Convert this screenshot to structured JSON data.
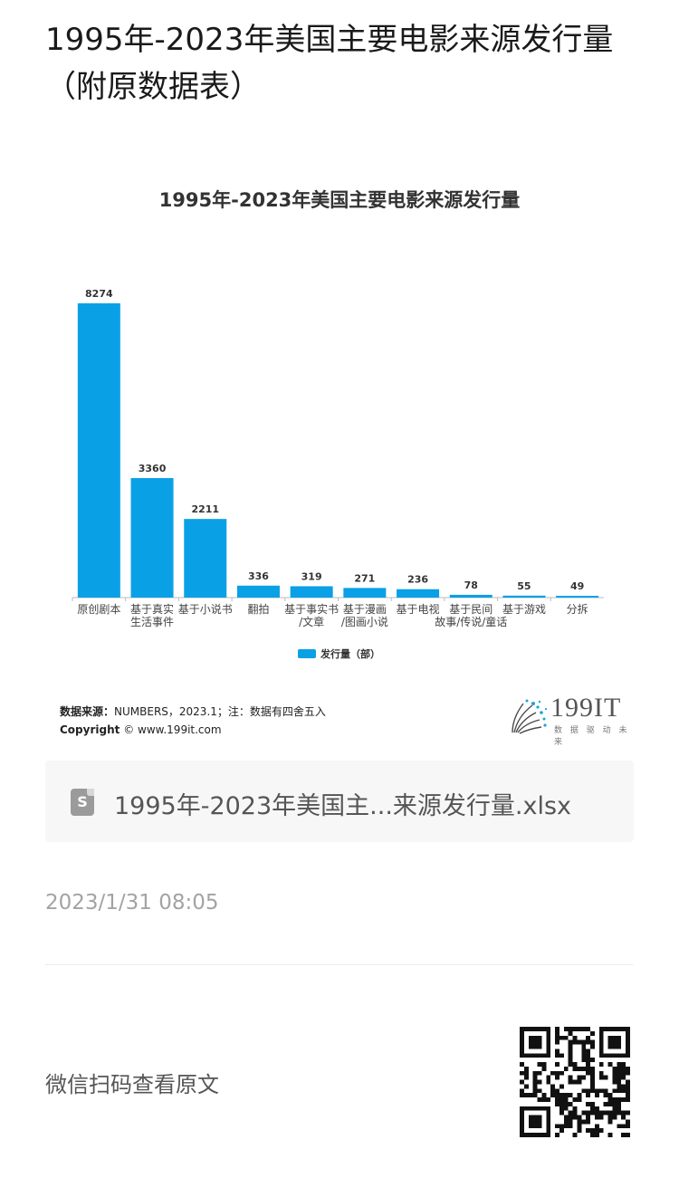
{
  "article": {
    "title": "1995年-2023年美国主要电影来源发行量（附原数据表）"
  },
  "chart_data": {
    "type": "bar",
    "title": "1995年-2023年美国主要电影来源发行量",
    "categories": [
      [
        "原创剧本"
      ],
      [
        "基于真实",
        "生活事件"
      ],
      [
        "基于小说书"
      ],
      [
        "翻拍"
      ],
      [
        "基于事实书",
        "/文章"
      ],
      [
        "基于漫画",
        "/图画小说"
      ],
      [
        "基于电视"
      ],
      [
        "基于民间",
        "故事/传说/童话"
      ],
      [
        "基于游戏"
      ],
      [
        "分拆"
      ]
    ],
    "series": [
      {
        "name": "发行量（部）",
        "values": [
          8274,
          3360,
          2211,
          336,
          319,
          271,
          236,
          78,
          55,
          49
        ],
        "color": "#0aa0e6"
      }
    ],
    "ylim": [
      0,
      8274
    ],
    "grid": false,
    "legend": "bottom",
    "value_labels": true
  },
  "source": {
    "label": "数据来源：",
    "text": "NUMBERS，2023.1；注：数据有四舍五入",
    "copyright_label": "Copyright",
    "copyright_text": "© www.199it.com"
  },
  "logo": {
    "name": "199IT",
    "tagline": "数 据 驱 动 未 来"
  },
  "attachment": {
    "icon": "file-s-icon",
    "icon_letter": "S",
    "filename": "1995年-2023年美国主...来源发行量.xlsx"
  },
  "meta": {
    "timestamp": "2023/1/31 08:05"
  },
  "footer": {
    "qr_hint": "微信扫码查看原文",
    "qr_icon": "qr-code-icon"
  }
}
